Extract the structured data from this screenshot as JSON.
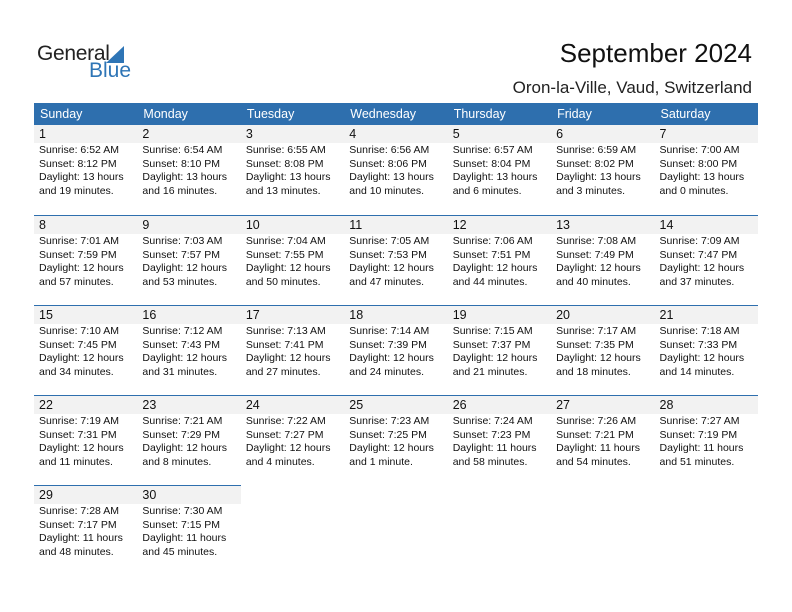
{
  "logo": {
    "text_general": "General",
    "text_blue": "Blue"
  },
  "header": {
    "title": "September 2024",
    "location": "Oron-la-Ville, Vaud, Switzerland"
  },
  "colors": {
    "accent": "#2e6fae",
    "date_band": "#f2f2f2"
  },
  "weekdays": [
    "Sunday",
    "Monday",
    "Tuesday",
    "Wednesday",
    "Thursday",
    "Friday",
    "Saturday"
  ],
  "days": [
    {
      "day": "1",
      "sunrise": "Sunrise: 6:52 AM",
      "sunset": "Sunset: 8:12 PM",
      "daylight": "Daylight: 13 hours",
      "minutes": "and 19 minutes."
    },
    {
      "day": "2",
      "sunrise": "Sunrise: 6:54 AM",
      "sunset": "Sunset: 8:10 PM",
      "daylight": "Daylight: 13 hours",
      "minutes": "and 16 minutes."
    },
    {
      "day": "3",
      "sunrise": "Sunrise: 6:55 AM",
      "sunset": "Sunset: 8:08 PM",
      "daylight": "Daylight: 13 hours",
      "minutes": "and 13 minutes."
    },
    {
      "day": "4",
      "sunrise": "Sunrise: 6:56 AM",
      "sunset": "Sunset: 8:06 PM",
      "daylight": "Daylight: 13 hours",
      "minutes": "and 10 minutes."
    },
    {
      "day": "5",
      "sunrise": "Sunrise: 6:57 AM",
      "sunset": "Sunset: 8:04 PM",
      "daylight": "Daylight: 13 hours",
      "minutes": "and 6 minutes."
    },
    {
      "day": "6",
      "sunrise": "Sunrise: 6:59 AM",
      "sunset": "Sunset: 8:02 PM",
      "daylight": "Daylight: 13 hours",
      "minutes": "and 3 minutes."
    },
    {
      "day": "7",
      "sunrise": "Sunrise: 7:00 AM",
      "sunset": "Sunset: 8:00 PM",
      "daylight": "Daylight: 13 hours",
      "minutes": "and 0 minutes."
    },
    {
      "day": "8",
      "sunrise": "Sunrise: 7:01 AM",
      "sunset": "Sunset: 7:59 PM",
      "daylight": "Daylight: 12 hours",
      "minutes": "and 57 minutes."
    },
    {
      "day": "9",
      "sunrise": "Sunrise: 7:03 AM",
      "sunset": "Sunset: 7:57 PM",
      "daylight": "Daylight: 12 hours",
      "minutes": "and 53 minutes."
    },
    {
      "day": "10",
      "sunrise": "Sunrise: 7:04 AM",
      "sunset": "Sunset: 7:55 PM",
      "daylight": "Daylight: 12 hours",
      "minutes": "and 50 minutes."
    },
    {
      "day": "11",
      "sunrise": "Sunrise: 7:05 AM",
      "sunset": "Sunset: 7:53 PM",
      "daylight": "Daylight: 12 hours",
      "minutes": "and 47 minutes."
    },
    {
      "day": "12",
      "sunrise": "Sunrise: 7:06 AM",
      "sunset": "Sunset: 7:51 PM",
      "daylight": "Daylight: 12 hours",
      "minutes": "and 44 minutes."
    },
    {
      "day": "13",
      "sunrise": "Sunrise: 7:08 AM",
      "sunset": "Sunset: 7:49 PM",
      "daylight": "Daylight: 12 hours",
      "minutes": "and 40 minutes."
    },
    {
      "day": "14",
      "sunrise": "Sunrise: 7:09 AM",
      "sunset": "Sunset: 7:47 PM",
      "daylight": "Daylight: 12 hours",
      "minutes": "and 37 minutes."
    },
    {
      "day": "15",
      "sunrise": "Sunrise: 7:10 AM",
      "sunset": "Sunset: 7:45 PM",
      "daylight": "Daylight: 12 hours",
      "minutes": "and 34 minutes."
    },
    {
      "day": "16",
      "sunrise": "Sunrise: 7:12 AM",
      "sunset": "Sunset: 7:43 PM",
      "daylight": "Daylight: 12 hours",
      "minutes": "and 31 minutes."
    },
    {
      "day": "17",
      "sunrise": "Sunrise: 7:13 AM",
      "sunset": "Sunset: 7:41 PM",
      "daylight": "Daylight: 12 hours",
      "minutes": "and 27 minutes."
    },
    {
      "day": "18",
      "sunrise": "Sunrise: 7:14 AM",
      "sunset": "Sunset: 7:39 PM",
      "daylight": "Daylight: 12 hours",
      "minutes": "and 24 minutes."
    },
    {
      "day": "19",
      "sunrise": "Sunrise: 7:15 AM",
      "sunset": "Sunset: 7:37 PM",
      "daylight": "Daylight: 12 hours",
      "minutes": "and 21 minutes."
    },
    {
      "day": "20",
      "sunrise": "Sunrise: 7:17 AM",
      "sunset": "Sunset: 7:35 PM",
      "daylight": "Daylight: 12 hours",
      "minutes": "and 18 minutes."
    },
    {
      "day": "21",
      "sunrise": "Sunrise: 7:18 AM",
      "sunset": "Sunset: 7:33 PM",
      "daylight": "Daylight: 12 hours",
      "minutes": "and 14 minutes."
    },
    {
      "day": "22",
      "sunrise": "Sunrise: 7:19 AM",
      "sunset": "Sunset: 7:31 PM",
      "daylight": "Daylight: 12 hours",
      "minutes": "and 11 minutes."
    },
    {
      "day": "23",
      "sunrise": "Sunrise: 7:21 AM",
      "sunset": "Sunset: 7:29 PM",
      "daylight": "Daylight: 12 hours",
      "minutes": "and 8 minutes."
    },
    {
      "day": "24",
      "sunrise": "Sunrise: 7:22 AM",
      "sunset": "Sunset: 7:27 PM",
      "daylight": "Daylight: 12 hours",
      "minutes": "and 4 minutes."
    },
    {
      "day": "25",
      "sunrise": "Sunrise: 7:23 AM",
      "sunset": "Sunset: 7:25 PM",
      "daylight": "Daylight: 12 hours",
      "minutes": "and 1 minute."
    },
    {
      "day": "26",
      "sunrise": "Sunrise: 7:24 AM",
      "sunset": "Sunset: 7:23 PM",
      "daylight": "Daylight: 11 hours",
      "minutes": "and 58 minutes."
    },
    {
      "day": "27",
      "sunrise": "Sunrise: 7:26 AM",
      "sunset": "Sunset: 7:21 PM",
      "daylight": "Daylight: 11 hours",
      "minutes": "and 54 minutes."
    },
    {
      "day": "28",
      "sunrise": "Sunrise: 7:27 AM",
      "sunset": "Sunset: 7:19 PM",
      "daylight": "Daylight: 11 hours",
      "minutes": "and 51 minutes."
    },
    {
      "day": "29",
      "sunrise": "Sunrise: 7:28 AM",
      "sunset": "Sunset: 7:17 PM",
      "daylight": "Daylight: 11 hours",
      "minutes": "and 48 minutes."
    },
    {
      "day": "30",
      "sunrise": "Sunrise: 7:30 AM",
      "sunset": "Sunset: 7:15 PM",
      "daylight": "Daylight: 11 hours",
      "minutes": "and 45 minutes."
    }
  ]
}
